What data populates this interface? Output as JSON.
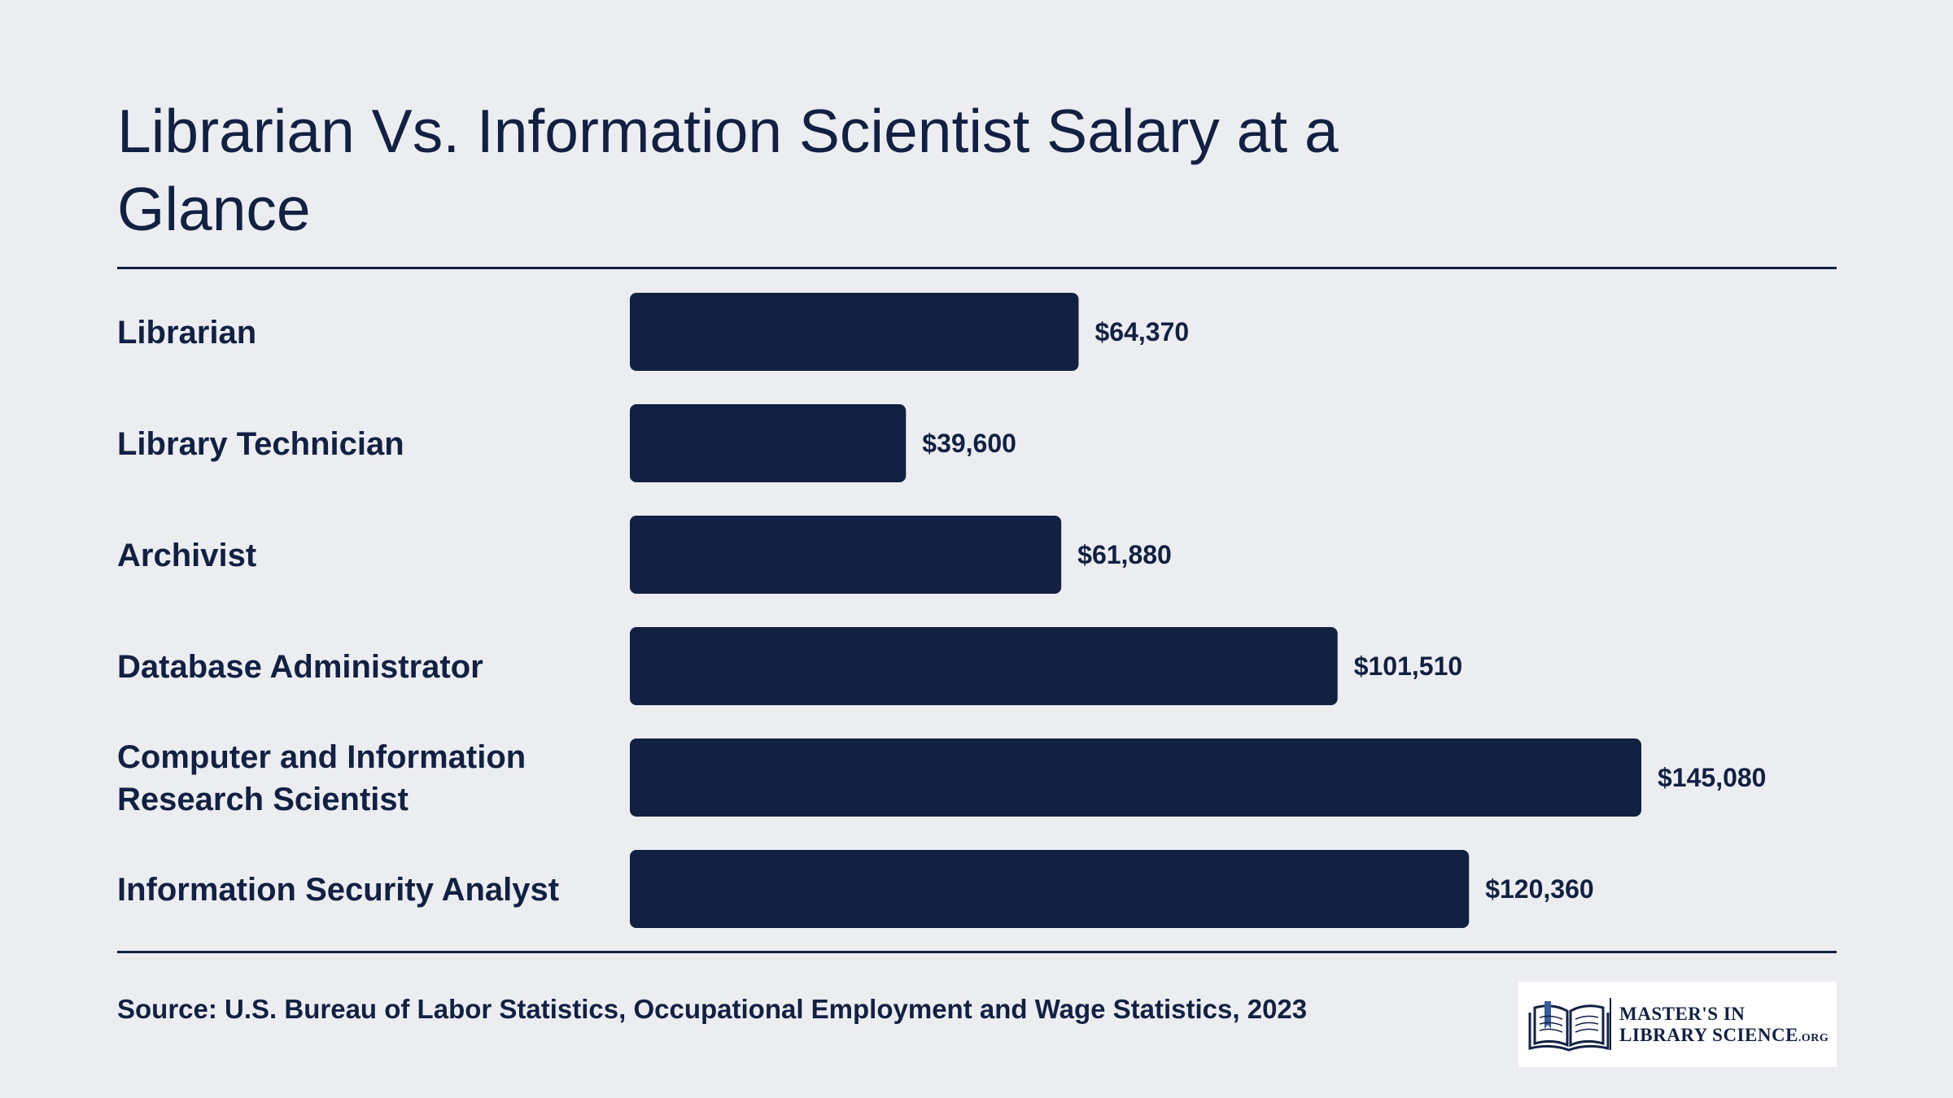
{
  "chart_data": {
    "type": "bar",
    "orientation": "horizontal",
    "title": "Librarian Vs. Information Scientist Salary at a Glance",
    "categories": [
      "Librarian",
      "Library Technician",
      "Archivist",
      "Database Administrator",
      "Computer and Information Research Scientist",
      "Information Security Analyst"
    ],
    "values": [
      64370,
      39600,
      61880,
      101510,
      145080,
      120360
    ],
    "value_labels": [
      "$64,370",
      "$39,600",
      "$61,880",
      "$101,510",
      "$145,080",
      "$120,360"
    ],
    "xlabel": "",
    "ylabel": "",
    "grid": false,
    "bar_color": "#122042"
  },
  "source": "Source: U.S. Bureau of Labor Statistics, Occupational Employment and Wage Statistics, 2023",
  "logo": {
    "line1": "MASTER'S IN",
    "line2": "LIBRARY SCIENCE",
    "line2_suffix": ".ORG",
    "icon": "open-book-icon"
  },
  "colors": {
    "background": "#ecedf1",
    "text": "#122042",
    "bar": "#122042",
    "accent": "#3a5a9c"
  }
}
